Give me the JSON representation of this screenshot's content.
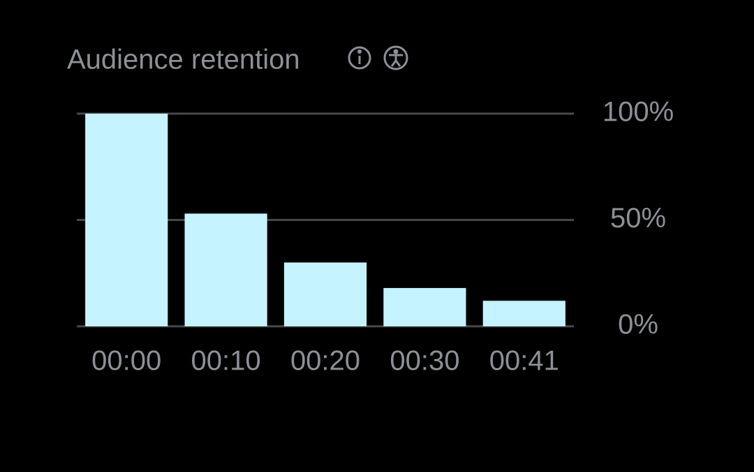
{
  "chart_data": {
    "type": "bar",
    "title": "Audience retention",
    "categories": [
      "00:00",
      "00:10",
      "00:20",
      "00:30",
      "00:41"
    ],
    "values": [
      100,
      53,
      30,
      18,
      12
    ],
    "color": "#c5f3ff",
    "ylim": [
      0,
      100
    ],
    "yticks": [
      {
        "value": 0,
        "label": "0%"
      },
      {
        "value": 50,
        "label": "50%"
      },
      {
        "value": 100,
        "label": "100%"
      }
    ],
    "grid": true
  }
}
